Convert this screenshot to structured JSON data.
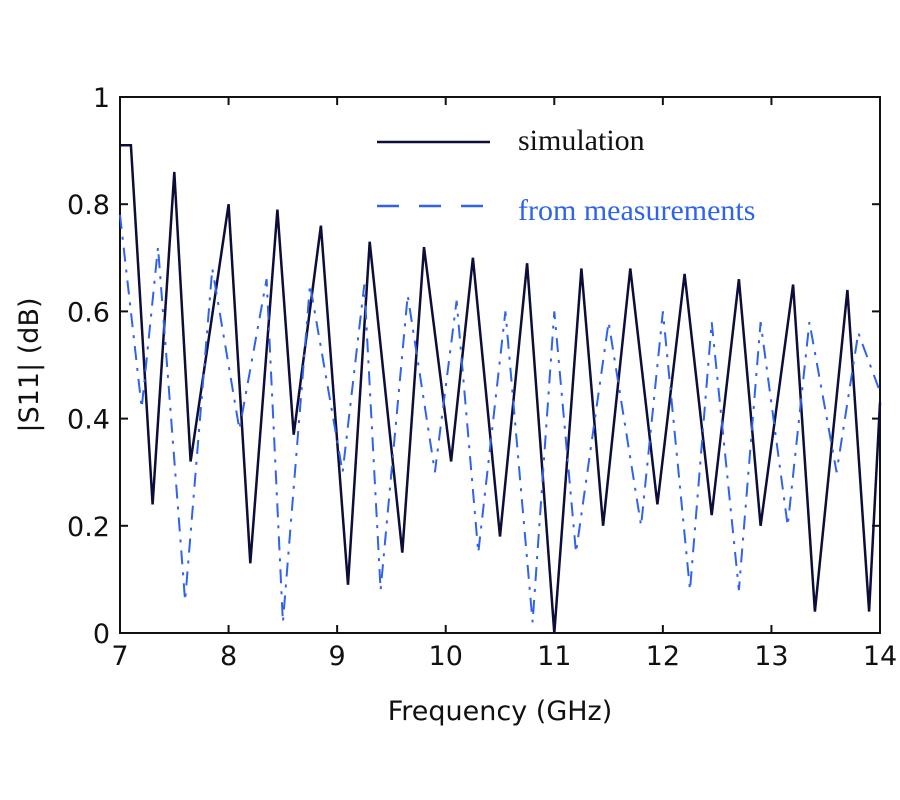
{
  "chart_data": {
    "type": "line",
    "title": "",
    "xlabel": "Frequency (GHz)",
    "ylabel": "|S11| (dB)",
    "xlim": [
      7,
      14
    ],
    "ylim": [
      0,
      1
    ],
    "xticks": [
      "7",
      "8",
      "9",
      "10",
      "11",
      "12",
      "13",
      "14"
    ],
    "yticks": [
      "0",
      "0.2",
      "0.4",
      "0.6",
      "0.8",
      "1"
    ],
    "grid": false,
    "legend": "top-right",
    "series": [
      {
        "name": "simulation",
        "color": "#0d0d3a",
        "style": "solid",
        "x": [
          7.0,
          7.1,
          7.3,
          7.5,
          7.65,
          8.0,
          8.2,
          8.45,
          8.6,
          8.85,
          9.1,
          9.3,
          9.6,
          9.8,
          10.05,
          10.25,
          10.5,
          10.75,
          11.0,
          11.25,
          11.45,
          11.7,
          11.95,
          12.2,
          12.45,
          12.7,
          12.9,
          13.2,
          13.4,
          13.7,
          13.9,
          14.0
        ],
        "y": [
          0.91,
          0.91,
          0.24,
          0.86,
          0.32,
          0.8,
          0.13,
          0.79,
          0.37,
          0.76,
          0.09,
          0.73,
          0.15,
          0.72,
          0.32,
          0.7,
          0.18,
          0.69,
          0.0,
          0.68,
          0.2,
          0.68,
          0.24,
          0.67,
          0.22,
          0.66,
          0.2,
          0.65,
          0.04,
          0.64,
          0.04,
          0.43
        ]
      },
      {
        "name": "from measurements",
        "color": "#2f63ee",
        "style": "dashed",
        "x": [
          7.0,
          7.2,
          7.35,
          7.6,
          7.85,
          8.1,
          8.35,
          8.5,
          8.75,
          9.05,
          9.25,
          9.4,
          9.65,
          9.9,
          10.1,
          10.3,
          10.55,
          10.8,
          11.0,
          11.2,
          11.5,
          11.8,
          12.0,
          12.25,
          12.45,
          12.7,
          12.9,
          13.15,
          13.35,
          13.6,
          13.8,
          14.0
        ],
        "y": [
          0.78,
          0.42,
          0.72,
          0.06,
          0.68,
          0.38,
          0.66,
          0.02,
          0.65,
          0.3,
          0.65,
          0.08,
          0.63,
          0.3,
          0.62,
          0.15,
          0.6,
          0.02,
          0.6,
          0.15,
          0.58,
          0.2,
          0.6,
          0.08,
          0.58,
          0.08,
          0.58,
          0.2,
          0.58,
          0.3,
          0.56,
          0.45
        ]
      }
    ]
  }
}
